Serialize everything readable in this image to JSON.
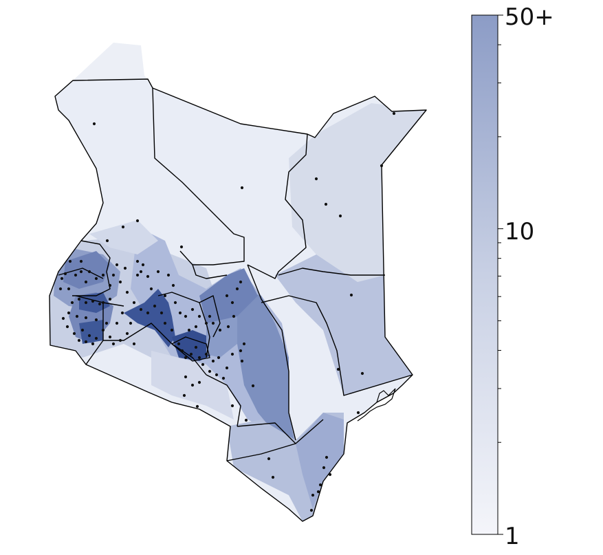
{
  "colorbar": {
    "scale": "log",
    "min": 1,
    "max": 50,
    "tick_labels": [
      {
        "value": 50,
        "label": "50+"
      },
      {
        "value": 10,
        "label": "10"
      },
      {
        "value": 1,
        "label": "1"
      }
    ],
    "color_low": "#f2f4f9",
    "color_high": "#8f9fc8"
  },
  "map": {
    "land_base_color": "#e9edf6",
    "dark_shade_color": "#3c5597",
    "mid_shade_color": "#7a8fbe",
    "light_shade_color": "#b6c2dc",
    "border_color": "#000000",
    "point_color": "#111111"
  }
}
